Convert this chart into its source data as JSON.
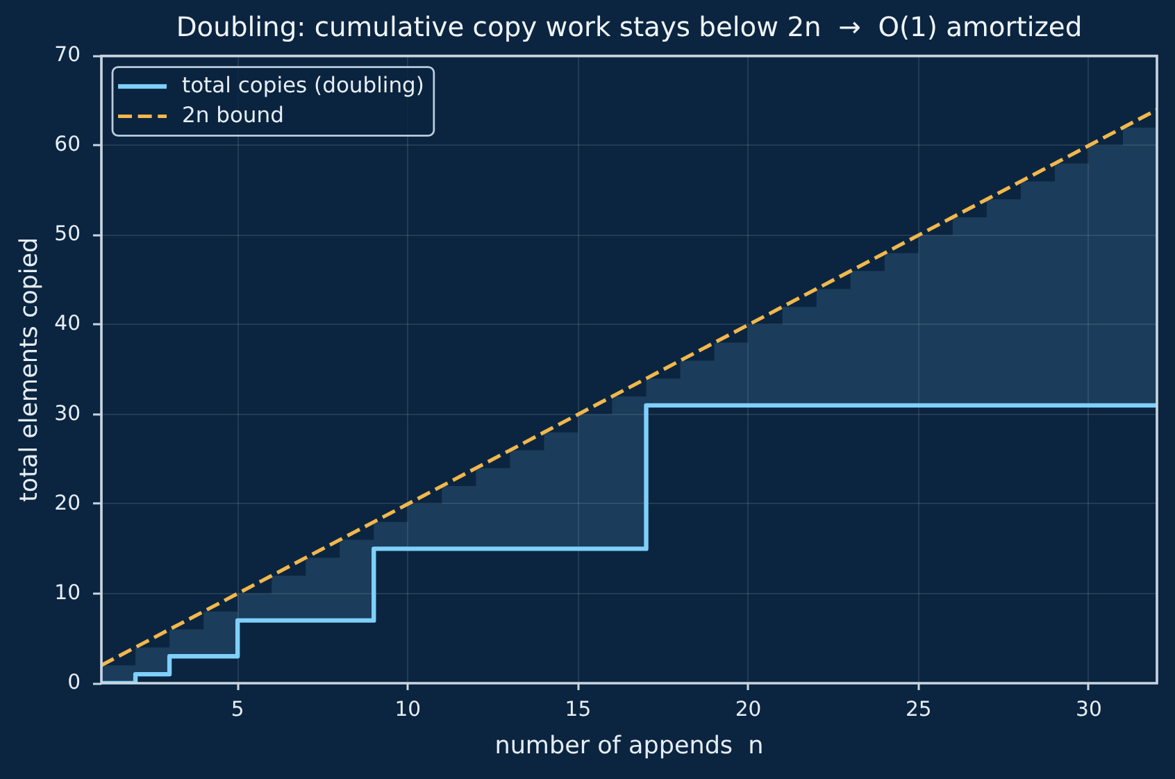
{
  "chart_data": {
    "type": "step",
    "title": "Doubling: cumulative copy work stays below 2n  →  O(1) amortized",
    "xlabel": "number of appends  n",
    "ylabel": "total elements copied",
    "x": [
      1,
      2,
      3,
      4,
      5,
      6,
      7,
      8,
      9,
      10,
      11,
      12,
      13,
      14,
      15,
      16,
      17,
      18,
      19,
      20,
      21,
      22,
      23,
      24,
      25,
      26,
      27,
      28,
      29,
      30,
      31,
      32
    ],
    "series": [
      {
        "name": "total copies (doubling)",
        "color": "#7fd0fb",
        "values": [
          0,
          1,
          3,
          3,
          7,
          7,
          7,
          7,
          15,
          15,
          15,
          15,
          15,
          15,
          15,
          15,
          31,
          31,
          31,
          31,
          31,
          31,
          31,
          31,
          31,
          31,
          31,
          31,
          31,
          31,
          31,
          31
        ],
        "lower": [
          0,
          1,
          3,
          3,
          7,
          7,
          7,
          7,
          15,
          15,
          15,
          15,
          15,
          15,
          15,
          15,
          31,
          31,
          31,
          31,
          31,
          31,
          31,
          31,
          31,
          31,
          31,
          31,
          31,
          31,
          31,
          31
        ],
        "upper": [
          2,
          4,
          6,
          8,
          10,
          12,
          14,
          16,
          18,
          20,
          22,
          24,
          26,
          28,
          30,
          32,
          34,
          36,
          38,
          40,
          42,
          44,
          46,
          48,
          50,
          52,
          54,
          56,
          58,
          60,
          62,
          64
        ]
      },
      {
        "name": "2n bound",
        "type": "line",
        "color": "#f2b84b",
        "line_style": "dashed",
        "values": [
          2,
          4,
          6,
          8,
          10,
          12,
          14,
          16,
          18,
          20,
          22,
          24,
          26,
          28,
          30,
          32,
          34,
          36,
          38,
          40,
          42,
          44,
          46,
          48,
          50,
          52,
          54,
          56,
          58,
          60,
          62,
          64
        ]
      }
    ],
    "xlim": [
      1,
      32
    ],
    "ylim": [
      0,
      70
    ],
    "xticks": [
      5,
      10,
      15,
      20,
      25,
      30
    ],
    "yticks": [
      0,
      10,
      20,
      30,
      40,
      50,
      60,
      70
    ],
    "grid": true,
    "legend": "top left"
  }
}
